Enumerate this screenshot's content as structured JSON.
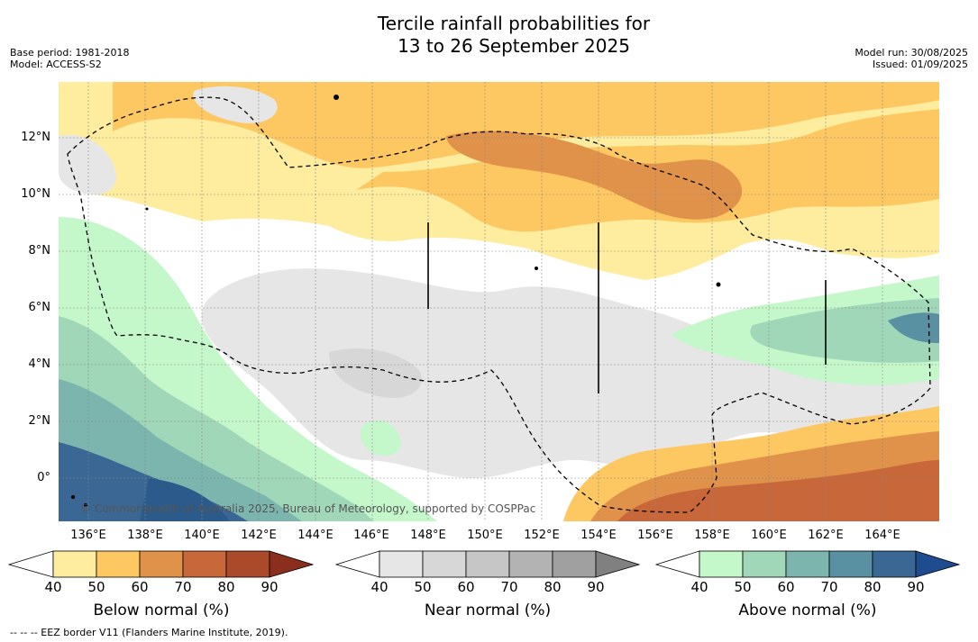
{
  "title_line1": "Tercile rainfall probabilities for",
  "title_line2": "13 to 26 September 2025",
  "base_period": "Base period: 1981-2018",
  "model": "Model: ACCESS-S2",
  "model_run": "Model run: 30/08/2025",
  "issued": "Issued: 01/09/2025",
  "lat_labels": [
    "12°N",
    "10°N",
    "8°N",
    "6°N",
    "4°N",
    "2°N",
    "0°"
  ],
  "lon_labels": [
    "136°E",
    "138°E",
    "140°E",
    "142°E",
    "144°E",
    "146°E",
    "148°E",
    "150°E",
    "152°E",
    "154°E",
    "156°E",
    "158°E",
    "160°E",
    "162°E",
    "164°E"
  ],
  "copyright": "© Commonwealth of Australia 2025, Bureau of Meteorology, supported by COSPPac",
  "colorbars": [
    {
      "title": "Below normal (%)",
      "ticks": [
        "40",
        "50",
        "60",
        "70",
        "80",
        "90"
      ],
      "colors": [
        "#ffffff",
        "#feec9f",
        "#fdc861",
        "#e0924a",
        "#c8673a",
        "#ab4a2b",
        "#8a2e1e"
      ]
    },
    {
      "title": "Near normal (%)",
      "ticks": [
        "40",
        "50",
        "60",
        "70",
        "80",
        "90"
      ],
      "colors": [
        "#ffffff",
        "#e6e6e6",
        "#d7d7d7",
        "#c6c6c6",
        "#b3b3b3",
        "#a0a0a0",
        "#808080"
      ]
    },
    {
      "title": "Above normal (%)",
      "ticks": [
        "40",
        "50",
        "60",
        "70",
        "80",
        "90"
      ],
      "colors": [
        "#ffffff",
        "#c4f7ca",
        "#a1d7b9",
        "#7cb5ae",
        "#5a91a2",
        "#3b6795",
        "#1f4c8f"
      ]
    }
  ],
  "footer": "--  --  -- EEZ border V11 (Flanders Marine Institute, 2019)."
}
